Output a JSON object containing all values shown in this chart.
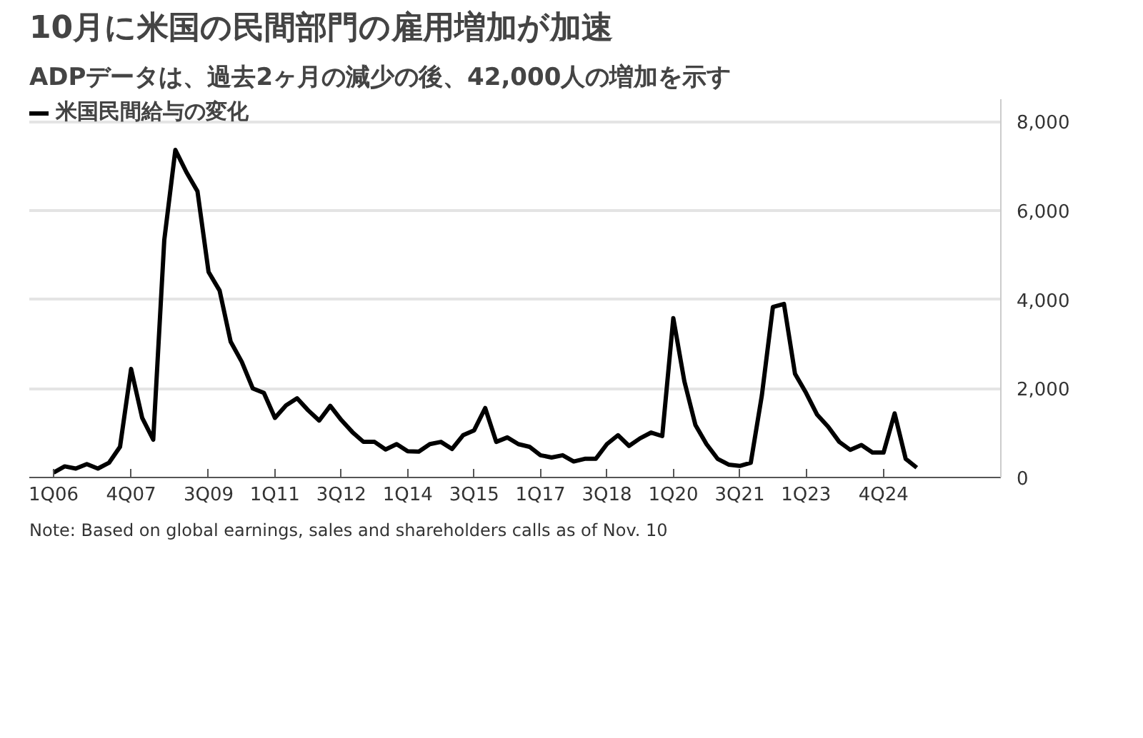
{
  "chart_data": {
    "type": "line",
    "title": "10月に米国の民間部門の雇用増加が加速",
    "subtitle": "ADPデータは、過去2ヶ月の減少の後、42,000人の増加を示す",
    "categories": [
      "1Q06",
      null,
      null,
      null,
      null,
      null,
      null,
      "4Q07",
      null,
      null,
      null,
      null,
      null,
      null,
      "3Q09",
      null,
      null,
      null,
      null,
      null,
      "1Q11",
      null,
      null,
      null,
      null,
      null,
      "3Q12",
      null,
      null,
      null,
      null,
      null,
      "1Q14",
      null,
      null,
      null,
      null,
      null,
      "3Q15",
      null,
      null,
      null,
      null,
      null,
      "1Q17",
      null,
      null,
      null,
      null,
      null,
      "3Q18",
      null,
      null,
      null,
      null,
      null,
      "1Q20",
      null,
      null,
      null,
      null,
      null,
      "3Q21",
      null,
      null,
      null,
      null,
      null,
      "1Q23",
      null,
      null,
      null,
      null,
      null,
      null,
      "4Q24",
      null,
      null,
      null
    ],
    "series": [
      {
        "name": "米国民間給与の変化",
        "color": "#000000",
        "values": [
          110,
          250,
          200,
          300,
          200,
          330,
          690,
          2440,
          1340,
          850,
          5340,
          7360,
          6860,
          6430,
          4620,
          4200,
          3050,
          2600,
          2000,
          1900,
          1340,
          1620,
          1780,
          1510,
          1280,
          1610,
          1290,
          1020,
          800,
          800,
          630,
          750,
          590,
          580,
          750,
          800,
          640,
          950,
          1060,
          1560,
          800,
          900,
          750,
          690,
          500,
          450,
          500,
          360,
          420,
          420,
          750,
          950,
          710,
          880,
          1010,
          930,
          3580,
          2160,
          1180,
          750,
          420,
          290,
          260,
          330,
          1840,
          3830,
          3900,
          2330,
          1900,
          1410,
          1140,
          800,
          620,
          730,
          560,
          560,
          1440,
          420,
          220
        ]
      }
    ],
    "ylim": [
      0,
      8500
    ],
    "yticks": [
      0,
      {
        "value": 2000,
        "label": "2,000"
      },
      {
        "value": 4000,
        "label": "4,000"
      },
      {
        "value": 6000,
        "label": "6,000"
      },
      {
        "value": 8000,
        "label": "8,000"
      }
    ],
    "grid": "y",
    "legend": "top left",
    "line_style": "solid",
    "annotations": [
      "Note: Based on global earnings, sales and shareholders calls as of Nov. 10"
    ]
  }
}
